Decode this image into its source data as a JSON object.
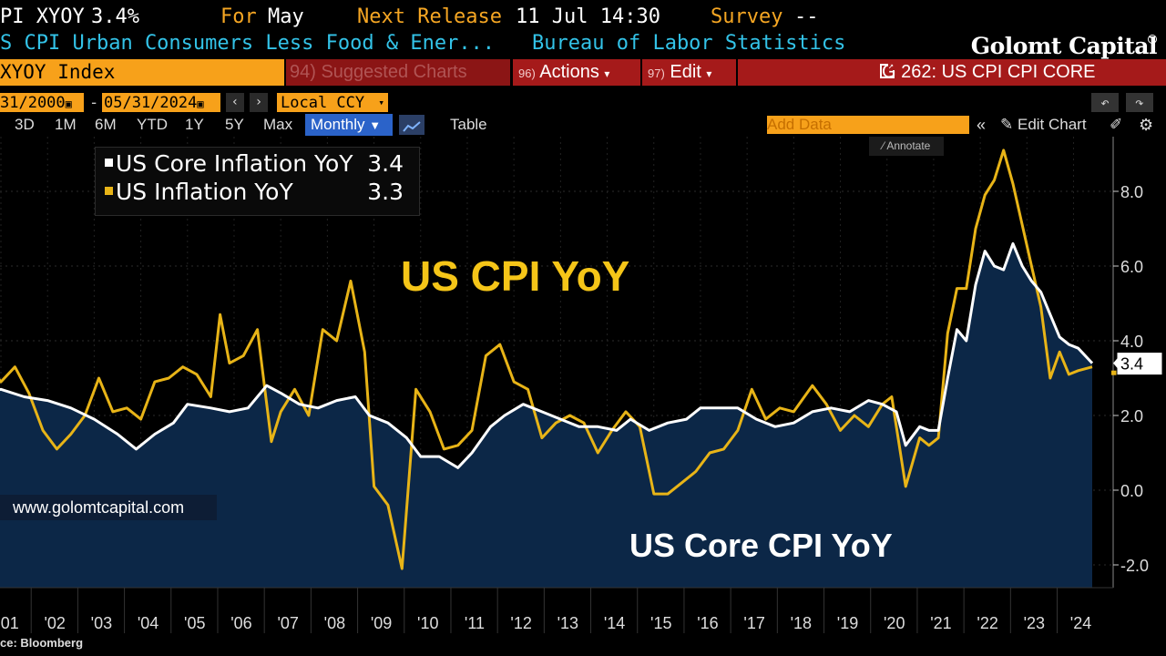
{
  "header": {
    "ticker_partial": "PI XYOY",
    "last_value": "3.4%",
    "for_label": "For",
    "for_month": "May",
    "next_release_label": "Next Release",
    "next_release": "11 Jul 14:30",
    "survey_label": "Survey",
    "survey_value": "--",
    "description_partial": "S CPI Urban Consumers Less Food & Ener...",
    "source_org": "Bureau of Labor Statistics",
    "brand": "Golomt Capital"
  },
  "command_bar": {
    "ticker_box": "XYOY Index",
    "suggested_num": "94)",
    "suggested_label": "Suggested Charts",
    "actions_num": "96)",
    "actions_label": "Actions",
    "edit_num": "97)",
    "edit_label": "Edit",
    "chart_title": "G 262: US CPI CPI CORE"
  },
  "date_controls": {
    "start_date_partial": "31/2000",
    "end_date": "05/31/2024",
    "currency": "Local CCY"
  },
  "range_buttons": [
    "3D",
    "1M",
    "6M",
    "YTD",
    "1Y",
    "5Y",
    "Max"
  ],
  "frequency": "Monthly",
  "table_label": "Table",
  "add_data_placeholder": "Add Data",
  "edit_chart_label": "Edit Chart",
  "annotate_label": "Annotate",
  "overlay_cpi": "US CPI YoY",
  "overlay_core": "US Core CPI YoY",
  "website": "www.golomtcapital.com",
  "source_partial": "ce: Bloomberg",
  "colors": {
    "core": "#ffffff",
    "headline": "#e8b417",
    "area_fill": "#0c2747",
    "accent_orange": "#f7a11a",
    "menu_red": "#a51a1a",
    "monthly_blue": "#2b63c9"
  },
  "chart_data": {
    "type": "line",
    "title": "",
    "xlabel": "",
    "ylabel": "",
    "ylim": [
      -2.5,
      9.5
    ],
    "yticks": [
      -2.0,
      0.0,
      2.0,
      4.0,
      6.0,
      8.0
    ],
    "ytick_labels": [
      "-2.0",
      "0.0",
      "2.0",
      "4.0",
      "6.0",
      "8.0"
    ],
    "xticks": [
      2001,
      2002,
      2003,
      2004,
      2005,
      2006,
      2007,
      2008,
      2009,
      2010,
      2011,
      2012,
      2013,
      2014,
      2015,
      2016,
      2017,
      2018,
      2019,
      2020,
      2021,
      2022,
      2023,
      2024
    ],
    "xtick_labels": [
      "'01",
      "'02",
      "'03",
      "'04",
      "'05",
      "'06",
      "'07",
      "'08",
      "'09",
      "'10",
      "'11",
      "'12",
      "'13",
      "'14",
      "'15",
      "'16",
      "'17",
      "'18",
      "'19",
      "'20",
      "'21",
      "'22",
      "'23",
      "'24"
    ],
    "grid": true,
    "legend": "top-left",
    "series": [
      {
        "name": "US Core Inflation YoY",
        "last": "3.4",
        "color": "#ffffff",
        "area": true,
        "x": [
          2000.7,
          2001.0,
          2001.5,
          2002.0,
          2002.5,
          2003.0,
          2003.5,
          2003.9,
          2004.3,
          2004.7,
          2005.0,
          2005.5,
          2005.9,
          2006.3,
          2006.7,
          2007.0,
          2007.4,
          2007.8,
          2008.2,
          2008.6,
          2008.9,
          2009.3,
          2009.7,
          2010.0,
          2010.4,
          2010.8,
          2011.1,
          2011.5,
          2011.8,
          2012.2,
          2012.6,
          2013.0,
          2013.4,
          2013.8,
          2014.2,
          2014.5,
          2014.9,
          2015.3,
          2015.7,
          2016.0,
          2016.4,
          2016.8,
          2017.2,
          2017.6,
          2018.0,
          2018.4,
          2018.8,
          2019.2,
          2019.6,
          2019.9,
          2020.2,
          2020.4,
          2020.7,
          2020.9,
          2021.1,
          2021.3,
          2021.5,
          2021.7,
          2021.9,
          2022.1,
          2022.3,
          2022.5,
          2022.7,
          2022.9,
          2023.1,
          2023.3,
          2023.5,
          2023.7,
          2023.9,
          2024.1,
          2024.4
        ],
        "y": [
          2.6,
          2.7,
          2.5,
          2.4,
          2.2,
          1.9,
          1.5,
          1.1,
          1.5,
          1.8,
          2.3,
          2.2,
          2.1,
          2.2,
          2.8,
          2.6,
          2.3,
          2.2,
          2.4,
          2.5,
          2.0,
          1.8,
          1.4,
          0.9,
          0.9,
          0.6,
          1.0,
          1.7,
          2.0,
          2.3,
          2.1,
          1.9,
          1.7,
          1.7,
          1.6,
          1.9,
          1.6,
          1.8,
          1.9,
          2.2,
          2.2,
          2.2,
          1.9,
          1.7,
          1.8,
          2.1,
          2.2,
          2.1,
          2.4,
          2.3,
          2.1,
          1.2,
          1.7,
          1.6,
          1.6,
          3.0,
          4.3,
          4.0,
          5.5,
          6.4,
          6.0,
          5.9,
          6.6,
          6.0,
          5.6,
          5.3,
          4.7,
          4.1,
          3.9,
          3.8,
          3.4
        ]
      },
      {
        "name": "US Inflation YoY",
        "last": "3.3",
        "color": "#e8b417",
        "area": false,
        "x": [
          2000.7,
          2001.0,
          2001.3,
          2001.6,
          2001.9,
          2002.2,
          2002.5,
          2002.8,
          2003.1,
          2003.4,
          2003.7,
          2004.0,
          2004.3,
          2004.6,
          2004.9,
          2005.2,
          2005.5,
          2005.7,
          2005.9,
          2006.2,
          2006.5,
          2006.8,
          2007.0,
          2007.3,
          2007.6,
          2007.9,
          2008.2,
          2008.5,
          2008.8,
          2009.0,
          2009.3,
          2009.6,
          2009.9,
          2010.2,
          2010.5,
          2010.8,
          2011.1,
          2011.4,
          2011.7,
          2012.0,
          2012.3,
          2012.6,
          2012.9,
          2013.2,
          2013.5,
          2013.8,
          2014.1,
          2014.4,
          2014.7,
          2015.0,
          2015.3,
          2015.6,
          2015.9,
          2016.2,
          2016.5,
          2016.8,
          2017.1,
          2017.4,
          2017.7,
          2018.0,
          2018.4,
          2018.7,
          2019.0,
          2019.3,
          2019.6,
          2019.9,
          2020.1,
          2020.4,
          2020.7,
          2020.9,
          2021.1,
          2021.3,
          2021.5,
          2021.7,
          2021.9,
          2022.1,
          2022.3,
          2022.5,
          2022.7,
          2022.9,
          2023.1,
          2023.3,
          2023.5,
          2023.7,
          2023.9,
          2024.1,
          2024.4
        ],
        "y": [
          3.4,
          2.9,
          3.3,
          2.6,
          1.6,
          1.1,
          1.5,
          2.0,
          3.0,
          2.1,
          2.2,
          1.9,
          2.9,
          3.0,
          3.3,
          3.1,
          2.5,
          4.7,
          3.4,
          3.6,
          4.3,
          1.3,
          2.1,
          2.7,
          2.0,
          4.3,
          4.0,
          5.6,
          3.7,
          0.1,
          -0.4,
          -2.1,
          2.7,
          2.1,
          1.1,
          1.2,
          1.6,
          3.6,
          3.9,
          2.9,
          2.7,
          1.4,
          1.8,
          2.0,
          1.8,
          1.0,
          1.6,
          2.1,
          1.7,
          -0.1,
          -0.1,
          0.2,
          0.5,
          1.0,
          1.1,
          1.6,
          2.7,
          1.9,
          2.2,
          2.1,
          2.8,
          2.3,
          1.6,
          2.0,
          1.7,
          2.3,
          2.5,
          0.1,
          1.4,
          1.2,
          1.4,
          4.2,
          5.4,
          5.4,
          7.0,
          7.9,
          8.3,
          9.1,
          8.2,
          7.1,
          6.0,
          4.9,
          3.0,
          3.7,
          3.1,
          3.2,
          3.3
        ]
      }
    ]
  }
}
